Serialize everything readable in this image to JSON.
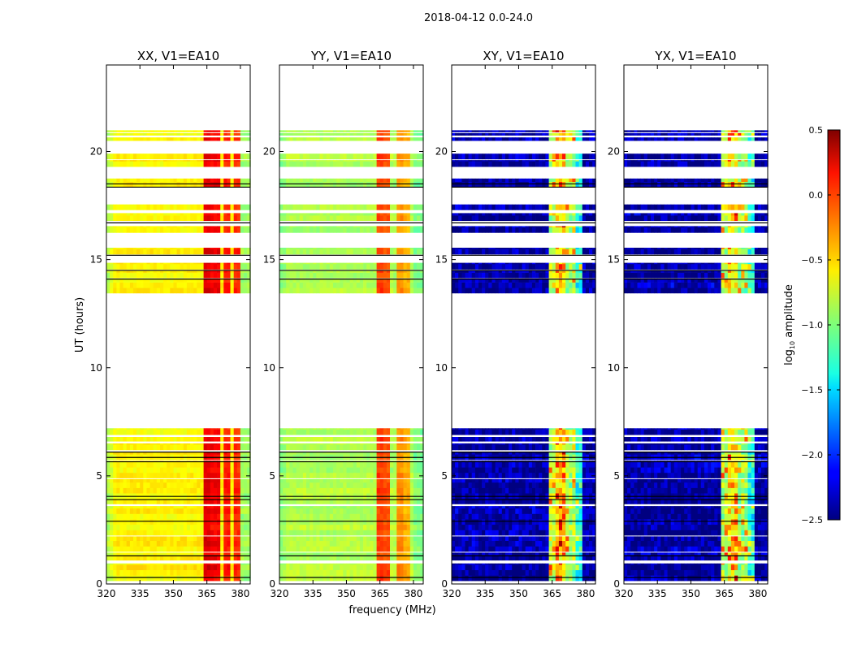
{
  "chart_data": {
    "type": "heatmap",
    "title": "2018-04-12 0.0-24.0",
    "xlabel": "frequency (MHz)",
    "ylabel": "UT (hours)",
    "xlim": [
      320,
      384.4
    ],
    "ylim": [
      0,
      24
    ],
    "xticks": [
      "320",
      "335",
      "350",
      "365",
      "380"
    ],
    "xtick_values": [
      320,
      335,
      350,
      365,
      380
    ],
    "yticks": [
      "0",
      "5",
      "10",
      "15",
      "20"
    ],
    "ytick_values": [
      0,
      5,
      10,
      15,
      20
    ],
    "colorbar": {
      "label": "log10 amplitude",
      "label_main": "log",
      "label_sub": "10",
      "label_rest": " amplitude",
      "colormap": "jet",
      "range": [
        -2.5,
        0.5
      ],
      "ticks": [
        "0.5",
        "0.0",
        "−0.5",
        "−1.0",
        "−1.5",
        "−2.0",
        "−2.5"
      ],
      "tick_values": [
        0.5,
        0.0,
        -0.5,
        -1.0,
        -1.5,
        -2.0,
        -2.5
      ]
    },
    "time_segments_hours": [
      [
        0.15,
        0.95
      ],
      [
        1.1,
        1.45
      ],
      [
        1.5,
        2.2
      ],
      [
        2.25,
        3.6
      ],
      [
        3.7,
        4.85
      ],
      [
        4.9,
        5.7
      ],
      [
        5.75,
        6.1
      ],
      [
        6.2,
        6.5
      ],
      [
        6.6,
        6.8
      ],
      [
        6.9,
        7.2
      ],
      [
        13.45,
        14.1
      ],
      [
        14.15,
        14.5
      ],
      [
        14.55,
        14.85
      ],
      [
        15.25,
        15.55
      ],
      [
        16.25,
        16.55
      ],
      [
        16.8,
        17.15
      ],
      [
        17.3,
        17.55
      ],
      [
        18.35,
        18.75
      ],
      [
        19.3,
        19.6
      ],
      [
        19.65,
        19.9
      ],
      [
        20.5,
        20.65
      ],
      [
        20.75,
        20.85
      ],
      [
        20.9,
        20.98
      ]
    ],
    "flagged_lines_hours": [
      0.3,
      1.3,
      2.9,
      3.9,
      4.05,
      5.65,
      5.85,
      6.1,
      14.1,
      14.5,
      15.2,
      16.7,
      18.35,
      18.5
    ],
    "series": [
      {
        "name": "XX, V1=EA10",
        "baseline": -0.6,
        "edge": -0.9,
        "bands": [
          {
            "from": 363,
            "to": 366.5,
            "value": 0.2
          },
          {
            "from": 367,
            "to": 370.5,
            "value": 0.15
          },
          {
            "from": 372,
            "to": 376,
            "value": 0.05
          },
          {
            "from": 376.5,
            "to": 380,
            "value": 0.0
          }
        ]
      },
      {
        "name": "YY, V1=EA10",
        "baseline": -0.85,
        "edge": -1.0,
        "bands": [
          {
            "from": 363,
            "to": 366.5,
            "value": -0.05
          },
          {
            "from": 367,
            "to": 370,
            "value": -0.1
          },
          {
            "from": 372,
            "to": 375,
            "value": -0.3
          },
          {
            "from": 376,
            "to": 379,
            "value": -0.4
          }
        ]
      },
      {
        "name": "XY, V1=EA10",
        "baseline": -2.4,
        "edge": -2.4,
        "bands": [
          {
            "from": 363,
            "to": 366,
            "value": -0.8
          },
          {
            "from": 366.5,
            "to": 371,
            "value": -0.5
          },
          {
            "from": 371.5,
            "to": 375,
            "value": -0.9
          },
          {
            "from": 376,
            "to": 379,
            "value": -1.3
          }
        ]
      },
      {
        "name": "YX, V1=EA10",
        "baseline": -2.4,
        "edge": -2.4,
        "bands": [
          {
            "from": 363,
            "to": 366,
            "value": -0.8
          },
          {
            "from": 366.5,
            "to": 371,
            "value": -0.6
          },
          {
            "from": 371.5,
            "to": 375,
            "value": -0.9
          },
          {
            "from": 376,
            "to": 379,
            "value": -1.3
          }
        ]
      }
    ]
  }
}
